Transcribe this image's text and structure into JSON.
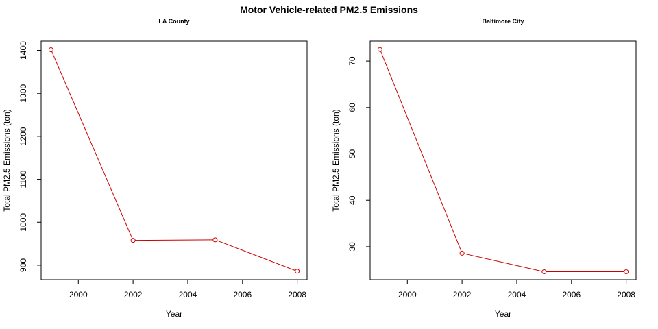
{
  "title": "Motor Vehicle-related PM2.5 Emissions",
  "chart_data": [
    {
      "type": "line",
      "title": "LA County",
      "xlabel": "Year",
      "ylabel": "Total PM2.5 Emissions (ton)",
      "x": [
        1999,
        2002,
        2005,
        2008
      ],
      "series": [
        {
          "values": [
            1401.7,
            957.9,
            959.1,
            886.0
          ]
        }
      ],
      "xticks": [
        2000,
        2002,
        2004,
        2006,
        2008
      ],
      "yticks": [
        900,
        1000,
        1100,
        1200,
        1300,
        1400
      ],
      "xlim": [
        1998.64,
        2008.36
      ],
      "ylim": [
        866.4,
        1421.6
      ],
      "color": "#cc0000",
      "grid": false
    },
    {
      "type": "line",
      "title": "Baltimore City",
      "xlabel": "Year",
      "ylabel": "Total PM2.5 Emissions (ton)",
      "x": [
        1999,
        2002,
        2005,
        2008
      ],
      "series": [
        {
          "values": [
            72.5,
            28.6,
            24.6,
            24.6
          ]
        }
      ],
      "xticks": [
        2000,
        2002,
        2004,
        2006,
        2008
      ],
      "yticks": [
        30,
        40,
        50,
        60,
        70
      ],
      "xlim": [
        1998.64,
        2008.36
      ],
      "ylim": [
        22.9,
        74.3
      ],
      "color": "#cc0000",
      "grid": false
    }
  ]
}
